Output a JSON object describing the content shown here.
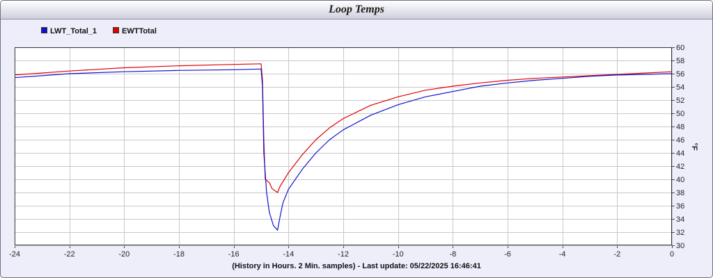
{
  "title": "Loop Temps",
  "footer": "(History in Hours. 2 Min. samples) - Last update: 05/22/2025 16:46:41",
  "legend": [
    {
      "name": "LWT_Total_1",
      "color": "#1010d0"
    },
    {
      "name": "EWTTotal",
      "color": "#e00000"
    }
  ],
  "chart_data": {
    "type": "line",
    "title": "Loop Temps",
    "xlabel": "(History in Hours. 2 Min. samples) - Last update: 05/22/2025 16:46:41",
    "ylabel": "°F",
    "xlim": [
      -24,
      0
    ],
    "ylim": [
      30,
      60
    ],
    "x_ticks": [
      -24,
      -22,
      -20,
      -18,
      -16,
      -14,
      -12,
      -10,
      -8,
      -6,
      -4,
      -2,
      0
    ],
    "y_ticks": [
      30,
      32,
      34,
      36,
      38,
      40,
      42,
      44,
      46,
      48,
      50,
      52,
      54,
      56,
      58,
      60
    ],
    "y_axis_side": "right",
    "grid": true,
    "legend_position": "top-left",
    "series": [
      {
        "name": "LWT_Total_1",
        "color": "#1010d0",
        "x": [
          -24,
          -22,
          -20,
          -18,
          -16,
          -15.0,
          -14.95,
          -14.9,
          -14.8,
          -14.7,
          -14.55,
          -14.4,
          -14.3,
          -14.2,
          -14.0,
          -13.5,
          -13,
          -12.5,
          -12,
          -11,
          -10,
          -9,
          -8,
          -7,
          -6,
          -5,
          -4,
          -3,
          -2,
          -1,
          0
        ],
        "y": [
          55.4,
          56.0,
          56.3,
          56.5,
          56.6,
          56.7,
          54.0,
          44.0,
          38.0,
          35.0,
          33.0,
          32.3,
          34.5,
          36.5,
          38.5,
          41.5,
          44.0,
          46.0,
          47.5,
          49.7,
          51.3,
          52.5,
          53.3,
          54.1,
          54.6,
          55.0,
          55.3,
          55.6,
          55.8,
          55.9,
          56.0
        ]
      },
      {
        "name": "EWTTotal",
        "color": "#e00000",
        "x": [
          -24,
          -22,
          -20,
          -18,
          -16,
          -15.0,
          -14.95,
          -14.9,
          -14.85,
          -14.7,
          -14.6,
          -14.4,
          -14.3,
          -14.0,
          -13.5,
          -13,
          -12.5,
          -12,
          -11,
          -10,
          -9,
          -8,
          -7,
          -6,
          -5,
          -4,
          -3,
          -2,
          -1,
          0
        ],
        "y": [
          55.8,
          56.4,
          56.9,
          57.2,
          57.4,
          57.5,
          55.0,
          46.0,
          40.0,
          39.5,
          38.6,
          38.0,
          39.0,
          41.0,
          43.7,
          46.0,
          47.8,
          49.2,
          51.2,
          52.5,
          53.5,
          54.1,
          54.6,
          55.0,
          55.3,
          55.5,
          55.7,
          55.9,
          56.1,
          56.3
        ]
      }
    ]
  }
}
